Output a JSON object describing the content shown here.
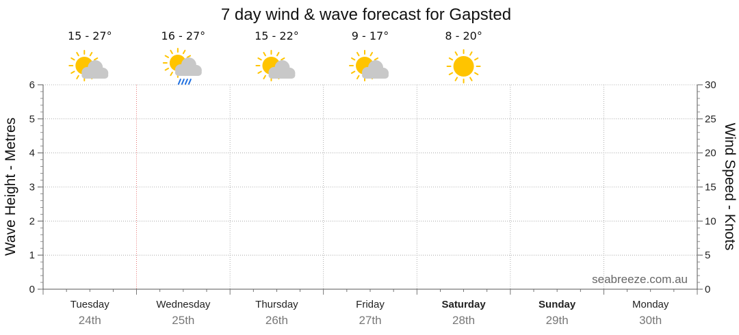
{
  "chart_data": {
    "type": "line",
    "title": "7 day wind & wave forecast for Gapsted",
    "ylabel_left": "Wave Height - Metres",
    "ylabel_right": "Wind Speed - Knots",
    "ylim_left": [
      0,
      6
    ],
    "ylim_right": [
      0,
      30
    ],
    "yticks_left": [
      "0",
      "1",
      "2",
      "3",
      "4",
      "5",
      "6"
    ],
    "yticks_right": [
      "0",
      "5",
      "10",
      "15",
      "20",
      "25",
      "30"
    ],
    "grid": true,
    "watermark": "seabreeze.com.au",
    "current_time_day_index": 1,
    "days": [
      {
        "day": "Tuesday",
        "date": "24th",
        "temp": "15 - 27°",
        "weather": "partly-cloudy-icon",
        "bold": false
      },
      {
        "day": "Wednesday",
        "date": "25th",
        "temp": "16 - 27°",
        "weather": "cloud-rain-icon",
        "bold": false
      },
      {
        "day": "Thursday",
        "date": "26th",
        "temp": "15 - 22°",
        "weather": "partly-cloudy-icon",
        "bold": false
      },
      {
        "day": "Friday",
        "date": "27th",
        "temp": "9 - 17°",
        "weather": "partly-cloudy-icon",
        "bold": false
      },
      {
        "day": "Saturday",
        "date": "28th",
        "temp": "8 - 20°",
        "weather": "sun-icon",
        "bold": true
      },
      {
        "day": "Sunday",
        "date": "29th",
        "temp": "",
        "weather": "",
        "bold": true
      },
      {
        "day": "Monday",
        "date": "30th",
        "temp": "",
        "weather": "",
        "bold": false
      }
    ],
    "series": []
  },
  "colors": {
    "sun": "#FFC400",
    "cloud": "#C8C8C8",
    "rain": "#1E6FE0",
    "grid": "#999999",
    "now_line": "#E05050",
    "date_text": "#777777"
  }
}
